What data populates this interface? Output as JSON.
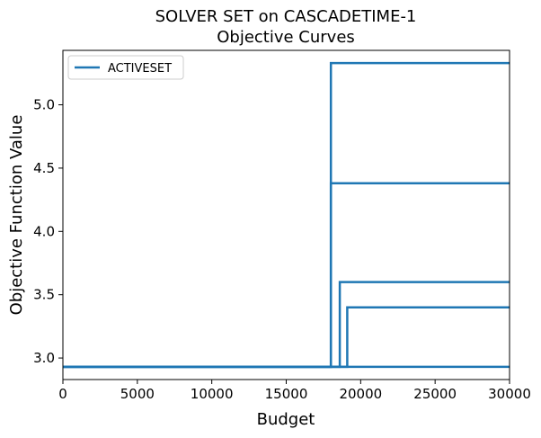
{
  "chart_data": {
    "type": "line",
    "title": "SOLVER SET on CASCADETIME-1",
    "subtitle": "Objective Curves",
    "xlabel": "Budget",
    "ylabel": "Objective Function Value",
    "xlim": [
      0,
      30000
    ],
    "ylim": [
      2.83,
      5.43
    ],
    "x_ticks": [
      0,
      5000,
      10000,
      15000,
      20000,
      25000,
      30000
    ],
    "x_tick_labels": [
      "0",
      "5000",
      "10000",
      "15000",
      "20000",
      "25000",
      "30000"
    ],
    "y_ticks": [
      3.0,
      3.5,
      4.0,
      4.5,
      5.0
    ],
    "y_tick_labels": [
      "3.0",
      "3.5",
      "4.0",
      "4.5",
      "5.0"
    ],
    "grid": false,
    "legend_position": "top-left",
    "legend": [
      "ACTIVESET"
    ],
    "color": "#1f77b4",
    "series": [
      {
        "name": "ACTIVESET",
        "x": [
          0,
          18000,
          18000,
          30000
        ],
        "y": [
          2.93,
          2.93,
          5.33,
          5.33
        ]
      },
      {
        "name": "ACTIVESET",
        "x": [
          0,
          18000,
          18000,
          30000
        ],
        "y": [
          2.93,
          2.93,
          4.38,
          4.38
        ]
      },
      {
        "name": "ACTIVESET",
        "x": [
          0,
          18600,
          18600,
          30000
        ],
        "y": [
          2.93,
          2.93,
          3.6,
          3.6
        ]
      },
      {
        "name": "ACTIVESET",
        "x": [
          0,
          19100,
          19100,
          30000
        ],
        "y": [
          2.93,
          2.93,
          3.4,
          3.4
        ]
      },
      {
        "name": "ACTIVESET",
        "x": [
          0,
          30000
        ],
        "y": [
          2.93,
          2.93
        ]
      }
    ]
  }
}
